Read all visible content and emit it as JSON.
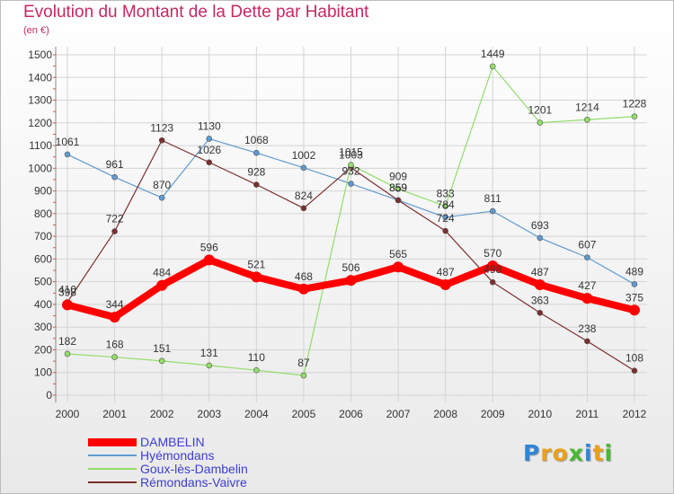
{
  "title": "Evolution du Montant de la Dette par Habitant",
  "subtitle": "(en €)",
  "logo_text": "Proxiti",
  "chart_data": {
    "type": "line",
    "categories": [
      "2000",
      "2001",
      "2002",
      "2003",
      "2004",
      "2005",
      "2006",
      "2007",
      "2008",
      "2009",
      "2010",
      "2011",
      "2012"
    ],
    "ylim": [
      0,
      1500
    ],
    "yticks": [
      0,
      100,
      200,
      300,
      400,
      500,
      600,
      700,
      800,
      900,
      1000,
      1100,
      1200,
      1300,
      1400,
      1500
    ],
    "grid": true,
    "legend": "bottom-left",
    "series": [
      {
        "name": "DAMBELIN",
        "color": "#ff0000",
        "values": [
          398,
          344,
          484,
          596,
          521,
          468,
          506,
          565,
          487,
          570,
          487,
          427,
          375
        ]
      },
      {
        "name": "Hyémondans",
        "color": "#5f9bd1",
        "values": [
          1061,
          961,
          870,
          1130,
          1068,
          1002,
          932,
          859,
          784,
          811,
          693,
          607,
          489
        ]
      },
      {
        "name": "Goux-lès-Dambelin",
        "color": "#92dd6a",
        "values": [
          182,
          168,
          151,
          131,
          110,
          87,
          1015,
          909,
          833,
          1449,
          1201,
          1214,
          1228
        ]
      },
      {
        "name": "Rémondans-Vaivre",
        "color": "#7c2e2e",
        "values": [
          410,
          722,
          1123,
          1026,
          928,
          824,
          1003,
          859,
          724,
          498,
          363,
          238,
          108
        ]
      }
    ]
  }
}
